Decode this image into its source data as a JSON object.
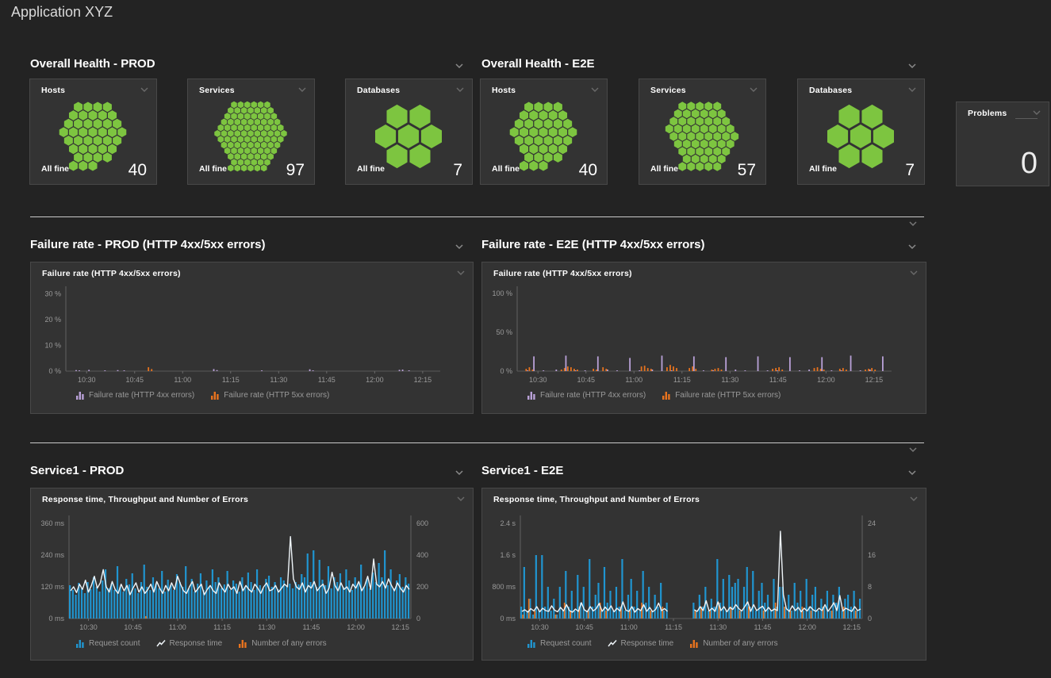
{
  "app": {
    "title": "Application XYZ"
  },
  "colors": {
    "green": "#7dc540",
    "blue": "#2095d0",
    "orange": "#e8731e",
    "purple": "#b9a1d8",
    "line": "#eef4f8",
    "bg": "#232323",
    "tile": "#333333"
  },
  "sections": {
    "health_prod": {
      "title": "Overall Health - PROD"
    },
    "health_e2e": {
      "title": "Overall Health - E2E"
    },
    "failure_prod": {
      "title": "Failure rate - PROD (HTTP 4xx/5xx errors)"
    },
    "failure_e2e": {
      "title": "Failure rate - E2E (HTTP 4xx/5xx errors)"
    },
    "service_prod": {
      "title": "Service1 - PROD"
    },
    "service_e2e": {
      "title": "Service1 - E2E"
    }
  },
  "health_tiles": [
    {
      "title": "Hosts",
      "status": "All fine",
      "count": 40
    },
    {
      "title": "Services",
      "status": "All fine",
      "count": 97
    },
    {
      "title": "Databases",
      "status": "All fine",
      "count": 7
    },
    {
      "title": "Hosts",
      "status": "All fine",
      "count": 40
    },
    {
      "title": "Services",
      "status": "All fine",
      "count": 57
    },
    {
      "title": "Databases",
      "status": "All fine",
      "count": 7
    }
  ],
  "problems": {
    "title": "Problems",
    "count": 0
  },
  "chart_data": [
    {
      "id": "failure-prod",
      "type": "bar",
      "title": "Failure rate (HTTP 4xx/5xx errors)",
      "time_start": "10:24",
      "time_end": "12:18",
      "interval_min": 1,
      "points": 115,
      "x_ticks": {
        "indices": [
          6,
          21,
          36,
          51,
          66,
          81,
          96,
          111
        ],
        "labels": [
          "10:30",
          "10:45",
          "11:00",
          "11:15",
          "11:30",
          "11:45",
          "12:00",
          "12:15"
        ]
      },
      "y_left": {
        "ticks": [
          "30 %",
          "20 %",
          "10 %",
          "0 %"
        ],
        "values": [
          30,
          20,
          10,
          0
        ],
        "max": 31
      },
      "series": [
        {
          "name": "Failure rate (HTTP 4xx errors)",
          "style": "bar",
          "color": "purple",
          "axis": "left",
          "sparse": {
            "3": 0.4,
            "4": 0.3,
            "7": 0.5,
            "12": 0.3,
            "16": 0.4,
            "18": 0.3,
            "46": 0.8,
            "47": 0.4,
            "61": 0.3,
            "76": 0.7,
            "77": 0.3,
            "104": 0.5,
            "105": 0.6,
            "107": 0.3
          }
        },
        {
          "name": "Failure rate (HTTP 5xx errors)",
          "style": "bar",
          "color": "orange",
          "axis": "left",
          "sparse": {
            "25": 1.5,
            "26": 0.8
          }
        }
      ]
    },
    {
      "id": "failure-e2e",
      "type": "bar",
      "title": "Failure rate (HTTP 4xx/5xx errors)",
      "time_start": "10:24",
      "time_end": "12:18",
      "interval_min": 1,
      "points": 115,
      "x_ticks": {
        "indices": [
          6,
          21,
          36,
          51,
          66,
          81,
          96,
          111
        ],
        "labels": [
          "10:30",
          "10:45",
          "11:00",
          "11:15",
          "11:30",
          "11:45",
          "12:00",
          "12:15"
        ]
      },
      "y_left": {
        "ticks": [
          "100 %",
          "50 %",
          "0 %"
        ],
        "values": [
          100,
          50,
          0
        ],
        "max": 103.3
      },
      "series": [
        {
          "name": "Failure rate (HTTP 4xx errors)",
          "style": "bar",
          "color": "purple",
          "axis": "left",
          "sparse": {
            "3": 1,
            "5": 19,
            "8": 1,
            "12": 2,
            "15": 20,
            "18": 1,
            "21": 1,
            "25": 19,
            "28": 2,
            "31": 1,
            "35": 17,
            "38": 1,
            "42": 2,
            "45": 20,
            "48": 1,
            "55": 19,
            "58": 1,
            "61": 1,
            "65": 18,
            "68": 2,
            "71": 1,
            "75": 19,
            "78": 1,
            "81": 1,
            "85": 18,
            "88": 1,
            "91": 2,
            "95": 18,
            "98": 1,
            "101": 1,
            "104": 20,
            "107": 1,
            "110": 2,
            "114": 19
          }
        },
        {
          "name": "Failure rate (HTTP 5xx errors)",
          "style": "bar",
          "color": "orange",
          "axis": "left",
          "sparse": {
            "2": 3,
            "3": 5,
            "4": 2,
            "13": 2,
            "14": 4,
            "15": 6,
            "16": 5,
            "17": 3,
            "18": 2,
            "23": 3,
            "24": 2,
            "26": 5,
            "27": 3,
            "38": 6,
            "39": 7,
            "40": 4,
            "41": 3,
            "46": 5,
            "47": 8,
            "48": 6,
            "49": 4,
            "53": 4,
            "54": 6,
            "55": 3,
            "60": 2,
            "61": 3,
            "62": 4,
            "63": 2,
            "79": 3,
            "80": 4,
            "81": 5,
            "82": 2,
            "92": 4,
            "93": 5,
            "94": 3,
            "95": 2,
            "100": 3,
            "101": 4,
            "102": 2,
            "108": 2,
            "109": 3,
            "110": 4,
            "111": 2
          }
        }
      ]
    },
    {
      "id": "service-prod",
      "type": "bar+line",
      "title": "Response time, Throughput and Number of Errors",
      "time_start": "10:24",
      "time_end": "12:18",
      "interval_min": 1,
      "points": 115,
      "x_ticks": {
        "indices": [
          6,
          21,
          36,
          51,
          66,
          81,
          96,
          111
        ],
        "labels": [
          "10:30",
          "10:45",
          "11:00",
          "11:15",
          "11:30",
          "11:45",
          "12:00",
          "12:15"
        ]
      },
      "y_left": {
        "ticks": [
          "360 ms",
          "240 ms",
          "120 ms",
          "0 ms"
        ],
        "values": [
          360,
          240,
          120,
          0
        ],
        "max": 372
      },
      "y_right": {
        "ticks": [
          "600",
          "400",
          "200",
          "0"
        ],
        "values": [
          600,
          400,
          200,
          0
        ],
        "max": 620
      },
      "series": [
        {
          "name": "Request count",
          "style": "bar",
          "color": "blue",
          "axis": "right",
          "values": [
            210,
            180,
            150,
            225,
            190,
            160,
            230,
            185,
            260,
            200,
            170,
            240,
            310,
            190,
            220,
            180,
            330,
            200,
            170,
            250,
            215,
            285,
            190,
            160,
            230,
            340,
            200,
            180,
            260,
            220,
            190,
            300,
            170,
            245,
            210,
            180,
            280,
            230,
            200,
            330,
            190,
            250,
            170,
            220,
            285,
            180,
            240,
            200,
            310,
            230,
            260,
            190,
            215,
            300,
            180,
            240,
            220,
            170,
            260,
            200,
            290,
            230,
            180,
            310,
            210,
            190,
            250,
            270,
            200,
            230,
            185,
            260,
            240,
            205,
            220,
            190,
            230,
            215,
            280,
            260,
            410,
            230,
            430,
            200,
            370,
            245,
            210,
            330,
            190,
            260,
            230,
            285,
            200,
            310,
            240,
            180,
            260,
            220,
            340,
            200,
            250,
            190,
            290,
            230,
            350,
            260,
            430,
            210,
            310,
            190,
            240,
            280,
            200,
            260,
            220
          ]
        },
        {
          "name": "Response time",
          "style": "line",
          "color": "line",
          "axis": "left",
          "values": [
            105,
            120,
            98,
            130,
            110,
            145,
            100,
            125,
            160,
            115,
            135,
            185,
            120,
            100,
            140,
            110,
            95,
            130,
            105,
            125,
            90,
            115,
            135,
            100,
            120,
            95,
            110,
            130,
            100,
            140,
            115,
            95,
            125,
            105,
            135,
            110,
            160,
            130,
            105,
            95,
            120,
            140,
            100,
            115,
            130,
            90,
            110,
            125,
            105,
            95,
            135,
            115,
            100,
            130,
            110,
            120,
            95,
            140,
            105,
            125,
            110,
            100,
            130,
            115,
            95,
            120,
            135,
            105,
            110,
            125,
            100,
            115,
            130,
            120,
            310,
            150,
            120,
            110,
            135,
            100,
            125,
            115,
            140,
            105,
            120,
            130,
            95,
            115,
            175,
            125,
            105,
            135,
            110,
            120,
            100,
            130,
            115,
            140,
            105,
            125,
            160,
            110,
            225,
            130,
            120,
            140,
            115,
            150,
            125,
            105,
            135,
            115,
            100,
            125,
            110
          ]
        },
        {
          "name": "Number of any errors",
          "style": "bar",
          "color": "orange",
          "axis": "right",
          "sparse": {
            "25": 15
          }
        }
      ]
    },
    {
      "id": "service-e2e",
      "type": "bar+line",
      "title": "Response time, Throughput and Number of Errors",
      "time_start": "10:24",
      "time_end": "12:18",
      "interval_min": 1,
      "points": 115,
      "x_ticks": {
        "indices": [
          6,
          21,
          36,
          51,
          66,
          81,
          96,
          111
        ],
        "labels": [
          "10:30",
          "10:45",
          "11:00",
          "11:15",
          "11:30",
          "11:45",
          "12:00",
          "12:15"
        ]
      },
      "y_left": {
        "ticks": [
          "2.4 s",
          "1.6 s",
          "800 ms",
          "0 ms"
        ],
        "values": [
          2400,
          1600,
          800,
          0
        ],
        "max": 2480
      },
      "y_right": {
        "ticks": [
          "24",
          "16",
          "8",
          "0"
        ],
        "values": [
          24,
          16,
          8,
          0
        ],
        "max": 24.8
      },
      "series": [
        {
          "name": "Request count",
          "style": "bar",
          "color": "blue",
          "axis": "right",
          "values": [
            3,
            13,
            2,
            5,
            1,
            16,
            2,
            16,
            3,
            8,
            2,
            5,
            1,
            8,
            2,
            12,
            3,
            7,
            2,
            11,
            4,
            8,
            2,
            15,
            3,
            6,
            9,
            2,
            13,
            4,
            7,
            2,
            8,
            3,
            15,
            2,
            6,
            10,
            3,
            7,
            2,
            12,
            4,
            8,
            2,
            6,
            3,
            9,
            2,
            4,
            null,
            null,
            null,
            null,
            null,
            null,
            null,
            null,
            4,
            2,
            6,
            3,
            8,
            2,
            5,
            3,
            15,
            4,
            10,
            2,
            11,
            8,
            9,
            10,
            2,
            8,
            13,
            3,
            12,
            2,
            7,
            9,
            4,
            6,
            2,
            10,
            3,
            8,
            8,
            3,
            6,
            2,
            9,
            4,
            7,
            2,
            10,
            3,
            6,
            8,
            2,
            5,
            3,
            7,
            2,
            6,
            4,
            8,
            2,
            5,
            6,
            3,
            7,
            2,
            5
          ]
        },
        {
          "name": "Response time",
          "style": "line",
          "color": "line",
          "axis": "left",
          "values": [
            180,
            220,
            160,
            250,
            190,
            300,
            170,
            260,
            200,
            180,
            320,
            210,
            170,
            280,
            190,
            350,
            200,
            160,
            240,
            180,
            400,
            220,
            170,
            300,
            190,
            250,
            380,
            180,
            290,
            200,
            320,
            170,
            260,
            190,
            420,
            210,
            180,
            300,
            160,
            250,
            200,
            350,
            180,
            280,
            170,
            230,
            390,
            200,
            250,
            180,
            null,
            null,
            null,
            null,
            null,
            null,
            null,
            null,
            220,
            180,
            300,
            200,
            450,
            190,
            260,
            180,
            420,
            200,
            300,
            170,
            280,
            230,
            350,
            250,
            190,
            300,
            420,
            180,
            350,
            200,
            260,
            310,
            180,
            280,
            190,
            240,
            200,
            2200,
            600,
            250,
            180,
            320,
            200,
            280,
            170,
            260,
            190,
            300,
            220,
            180,
            260,
            200,
            350,
            180,
            280,
            400,
            200,
            580,
            190,
            260,
            220,
            180,
            300,
            200,
            240
          ]
        },
        {
          "name": "Number of any errors",
          "style": "bar",
          "color": "orange",
          "axis": "right",
          "sparse": {
            "0": 1,
            "2": 5,
            "4": 2,
            "11": 1,
            "14": 4,
            "16": 2,
            "19": 3,
            "22": 2,
            "26": 4,
            "28": 2,
            "33": 3,
            "36": 2,
            "40": 4,
            "43": 2,
            "47": 3,
            "58": 2,
            "60": 3,
            "63": 2,
            "66": 4,
            "70": 3,
            "73": 2,
            "76": 3,
            "81": 2,
            "85": 4,
            "88": 3,
            "90": 2,
            "94": 3,
            "97": 2,
            "101": 3,
            "104": 2,
            "108": 3,
            "112": 2
          }
        }
      ]
    }
  ]
}
